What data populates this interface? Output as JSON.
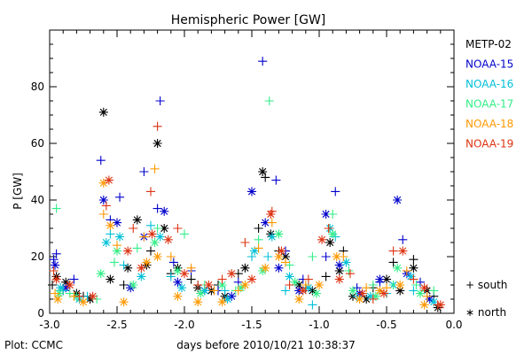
{
  "chart_data": {
    "type": "scatter",
    "title": "Hemispheric Power [GW]",
    "xlabel": "days before 2010/10/21 10:38:37",
    "ylabel": "P [GW]",
    "xlim": [
      -3.0,
      0.0
    ],
    "ylim": [
      0,
      100
    ],
    "x_ticks": [
      "-3.0",
      "-2.5",
      "-2.0",
      "-1.5",
      "-1.0",
      "-0.5",
      "0.0"
    ],
    "y_ticks": [
      "0",
      "20",
      "40",
      "60",
      "80"
    ],
    "grid": false,
    "legend_position": "right",
    "footer": "Plot: CCMC",
    "marker_legend": [
      {
        "symbol": "plus",
        "label": "+ south"
      },
      {
        "symbol": "asterisk",
        "label": "∗ north"
      }
    ],
    "series": [
      {
        "name": "METP-02",
        "color": "#000000",
        "south": [
          [
            -2.98,
            10
          ],
          [
            -2.9,
            8
          ],
          [
            -2.75,
            6
          ],
          [
            -2.45,
            10
          ],
          [
            -2.25,
            22
          ],
          [
            -2.1,
            14
          ],
          [
            -1.95,
            12
          ],
          [
            -1.75,
            10
          ],
          [
            -1.6,
            14
          ],
          [
            -1.45,
            30
          ],
          [
            -1.4,
            48
          ],
          [
            -1.3,
            22
          ],
          [
            -1.1,
            9
          ],
          [
            -0.95,
            13
          ],
          [
            -0.82,
            22
          ],
          [
            -0.6,
            9
          ],
          [
            -0.45,
            18
          ],
          [
            -0.3,
            19
          ],
          [
            -0.15,
            6
          ]
        ],
        "north": [
          [
            -2.95,
            13
          ],
          [
            -2.88,
            11
          ],
          [
            -2.8,
            7
          ],
          [
            -2.7,
            5
          ],
          [
            -2.6,
            71
          ],
          [
            -2.55,
            12
          ],
          [
            -2.42,
            16
          ],
          [
            -2.35,
            33
          ],
          [
            -2.28,
            17
          ],
          [
            -2.2,
            60
          ],
          [
            -2.15,
            30
          ],
          [
            -2.05,
            16
          ],
          [
            -1.9,
            9
          ],
          [
            -1.8,
            8
          ],
          [
            -1.7,
            6
          ],
          [
            -1.55,
            16
          ],
          [
            -1.42,
            50
          ],
          [
            -1.36,
            28
          ],
          [
            -1.25,
            20
          ],
          [
            -1.15,
            10
          ],
          [
            -1.05,
            8
          ],
          [
            -0.92,
            25
          ],
          [
            -0.85,
            15
          ],
          [
            -0.75,
            6
          ],
          [
            -0.65,
            5
          ],
          [
            -0.5,
            12
          ],
          [
            -0.4,
            8
          ],
          [
            -0.3,
            16
          ],
          [
            -0.2,
            8
          ],
          [
            -0.12,
            2
          ]
        ]
      },
      {
        "name": "NOAA-15",
        "color": "#0000cc",
        "south": [
          [
            -2.97,
            19
          ],
          [
            -2.95,
            21
          ],
          [
            -2.82,
            12
          ],
          [
            -2.62,
            54
          ],
          [
            -2.55,
            33
          ],
          [
            -2.48,
            41
          ],
          [
            -2.3,
            50
          ],
          [
            -2.2,
            37
          ],
          [
            -2.18,
            75
          ],
          [
            -2.08,
            18
          ],
          [
            -1.95,
            15
          ],
          [
            -1.75,
            8
          ],
          [
            -1.6,
            11
          ],
          [
            -1.42,
            89
          ],
          [
            -1.32,
            47
          ],
          [
            -1.25,
            22
          ],
          [
            -1.12,
            12
          ],
          [
            -0.95,
            20
          ],
          [
            -0.88,
            43
          ],
          [
            -0.72,
            9
          ],
          [
            -0.55,
            11
          ],
          [
            -0.38,
            26
          ],
          [
            -0.25,
            11
          ]
        ],
        "north": [
          [
            -2.96,
            17
          ],
          [
            -2.88,
            9
          ],
          [
            -2.6,
            40
          ],
          [
            -2.5,
            32
          ],
          [
            -2.4,
            9
          ],
          [
            -2.3,
            27
          ],
          [
            -2.15,
            36
          ],
          [
            -2.05,
            11
          ],
          [
            -1.85,
            8
          ],
          [
            -1.65,
            6
          ],
          [
            -1.5,
            43
          ],
          [
            -1.4,
            32
          ],
          [
            -1.3,
            16
          ],
          [
            -1.15,
            8
          ],
          [
            -0.95,
            35
          ],
          [
            -0.85,
            17
          ],
          [
            -0.7,
            7
          ],
          [
            -0.55,
            12
          ],
          [
            -0.42,
            40
          ],
          [
            -0.35,
            14
          ],
          [
            -0.18,
            5
          ]
        ]
      },
      {
        "name": "NOAA-16",
        "color": "#00c0d8",
        "south": [
          [
            -2.9,
            8
          ],
          [
            -2.72,
            6
          ],
          [
            -2.55,
            28
          ],
          [
            -2.45,
            17
          ],
          [
            -2.25,
            31
          ],
          [
            -2.1,
            13
          ],
          [
            -1.9,
            10
          ],
          [
            -1.7,
            8
          ],
          [
            -1.5,
            20
          ],
          [
            -1.38,
            20
          ],
          [
            -1.25,
            8
          ],
          [
            -1.05,
            3
          ],
          [
            -0.88,
            27
          ],
          [
            -0.72,
            6
          ],
          [
            -0.5,
            7
          ],
          [
            -0.3,
            8
          ]
        ],
        "north": [
          [
            -2.92,
            9
          ],
          [
            -2.78,
            5
          ],
          [
            -2.58,
            25
          ],
          [
            -2.48,
            27
          ],
          [
            -2.32,
            13
          ],
          [
            -2.18,
            27
          ],
          [
            -2.02,
            9
          ],
          [
            -1.85,
            8
          ],
          [
            -1.68,
            5
          ],
          [
            -1.48,
            22
          ],
          [
            -1.35,
            27
          ],
          [
            -1.22,
            13
          ],
          [
            -1.08,
            9
          ],
          [
            -0.92,
            30
          ],
          [
            -0.8,
            18
          ],
          [
            -0.62,
            6
          ],
          [
            -0.45,
            10
          ],
          [
            -0.32,
            13
          ],
          [
            -0.15,
            4
          ]
        ]
      },
      {
        "name": "NOAA-17",
        "color": "#33ee88",
        "south": [
          [
            -2.95,
            37
          ],
          [
            -2.85,
            7
          ],
          [
            -2.65,
            5
          ],
          [
            -2.52,
            18
          ],
          [
            -2.35,
            23
          ],
          [
            -2.2,
            30
          ],
          [
            -2.0,
            28
          ],
          [
            -1.85,
            10
          ],
          [
            -1.62,
            8
          ],
          [
            -1.45,
            26
          ],
          [
            -1.37,
            75
          ],
          [
            -1.22,
            17
          ],
          [
            -1.05,
            20
          ],
          [
            -0.9,
            35
          ],
          [
            -0.78,
            15
          ],
          [
            -0.6,
            10
          ],
          [
            -0.45,
            10
          ],
          [
            -0.28,
            10
          ],
          [
            -0.15,
            8
          ]
        ],
        "north": [
          [
            -2.93,
            7
          ],
          [
            -2.8,
            6
          ],
          [
            -2.62,
            14
          ],
          [
            -2.5,
            22
          ],
          [
            -2.38,
            10
          ],
          [
            -2.22,
            25
          ],
          [
            -2.05,
            15
          ],
          [
            -1.88,
            7
          ],
          [
            -1.72,
            10
          ],
          [
            -1.58,
            9
          ],
          [
            -1.42,
            15
          ],
          [
            -1.3,
            28
          ],
          [
            -1.18,
            11
          ],
          [
            -1.02,
            7
          ],
          [
            -0.9,
            28
          ],
          [
            -0.75,
            8
          ],
          [
            -0.58,
            6
          ],
          [
            -0.42,
            16
          ],
          [
            -0.25,
            7
          ]
        ]
      },
      {
        "name": "NOAA-18",
        "color": "#ff9900",
        "south": [
          [
            -2.96,
            7
          ],
          [
            -2.82,
            6
          ],
          [
            -2.6,
            35
          ],
          [
            -2.5,
            24
          ],
          [
            -2.3,
            27
          ],
          [
            -2.22,
            51
          ],
          [
            -2.1,
            20
          ],
          [
            -1.95,
            16
          ],
          [
            -1.78,
            8
          ],
          [
            -1.6,
            8
          ],
          [
            -1.45,
            23
          ],
          [
            -1.35,
            32
          ],
          [
            -1.25,
            18
          ],
          [
            -1.1,
            10
          ],
          [
            -0.93,
            30
          ],
          [
            -0.82,
            20
          ],
          [
            -0.65,
            9
          ],
          [
            -0.5,
            9
          ],
          [
            -0.35,
            15
          ],
          [
            -0.2,
            6
          ]
        ],
        "north": [
          [
            -2.94,
            5
          ],
          [
            -2.75,
            4
          ],
          [
            -2.6,
            46
          ],
          [
            -2.55,
            31
          ],
          [
            -2.45,
            4
          ],
          [
            -2.28,
            18
          ],
          [
            -2.2,
            20
          ],
          [
            -2.05,
            6
          ],
          [
            -1.9,
            4
          ],
          [
            -1.72,
            4
          ],
          [
            -1.55,
            10
          ],
          [
            -1.4,
            16
          ],
          [
            -1.3,
            20
          ],
          [
            -1.15,
            5
          ],
          [
            -1.0,
            10
          ],
          [
            -0.87,
            20
          ],
          [
            -0.7,
            5
          ],
          [
            -0.55,
            8
          ],
          [
            -0.4,
            10
          ],
          [
            -0.22,
            3
          ]
        ]
      },
      {
        "name": "NOAA-19",
        "color": "#dd3311",
        "south": [
          [
            -2.97,
            15
          ],
          [
            -2.78,
            6
          ],
          [
            -2.58,
            38
          ],
          [
            -2.38,
            30
          ],
          [
            -2.25,
            43
          ],
          [
            -2.2,
            66
          ],
          [
            -2.05,
            30
          ],
          [
            -1.9,
            10
          ],
          [
            -1.72,
            12
          ],
          [
            -1.55,
            25
          ],
          [
            -1.35,
            36
          ],
          [
            -1.22,
            10
          ],
          [
            -1.08,
            12
          ],
          [
            -0.93,
            30
          ],
          [
            -0.77,
            14
          ],
          [
            -0.6,
            5
          ],
          [
            -0.45,
            22
          ],
          [
            -0.3,
            12
          ],
          [
            -0.12,
            3
          ]
        ],
        "north": [
          [
            -2.95,
            12
          ],
          [
            -2.85,
            10
          ],
          [
            -2.68,
            6
          ],
          [
            -2.56,
            47
          ],
          [
            -2.42,
            22
          ],
          [
            -2.32,
            16
          ],
          [
            -2.24,
            28
          ],
          [
            -2.12,
            26
          ],
          [
            -2.0,
            14
          ],
          [
            -1.82,
            10
          ],
          [
            -1.65,
            14
          ],
          [
            -1.5,
            12
          ],
          [
            -1.36,
            35
          ],
          [
            -1.28,
            22
          ],
          [
            -1.12,
            8
          ],
          [
            -0.98,
            26
          ],
          [
            -0.85,
            12
          ],
          [
            -0.68,
            7
          ],
          [
            -0.52,
            7
          ],
          [
            -0.38,
            22
          ],
          [
            -0.22,
            9
          ],
          [
            -0.1,
            3
          ]
        ]
      }
    ]
  }
}
